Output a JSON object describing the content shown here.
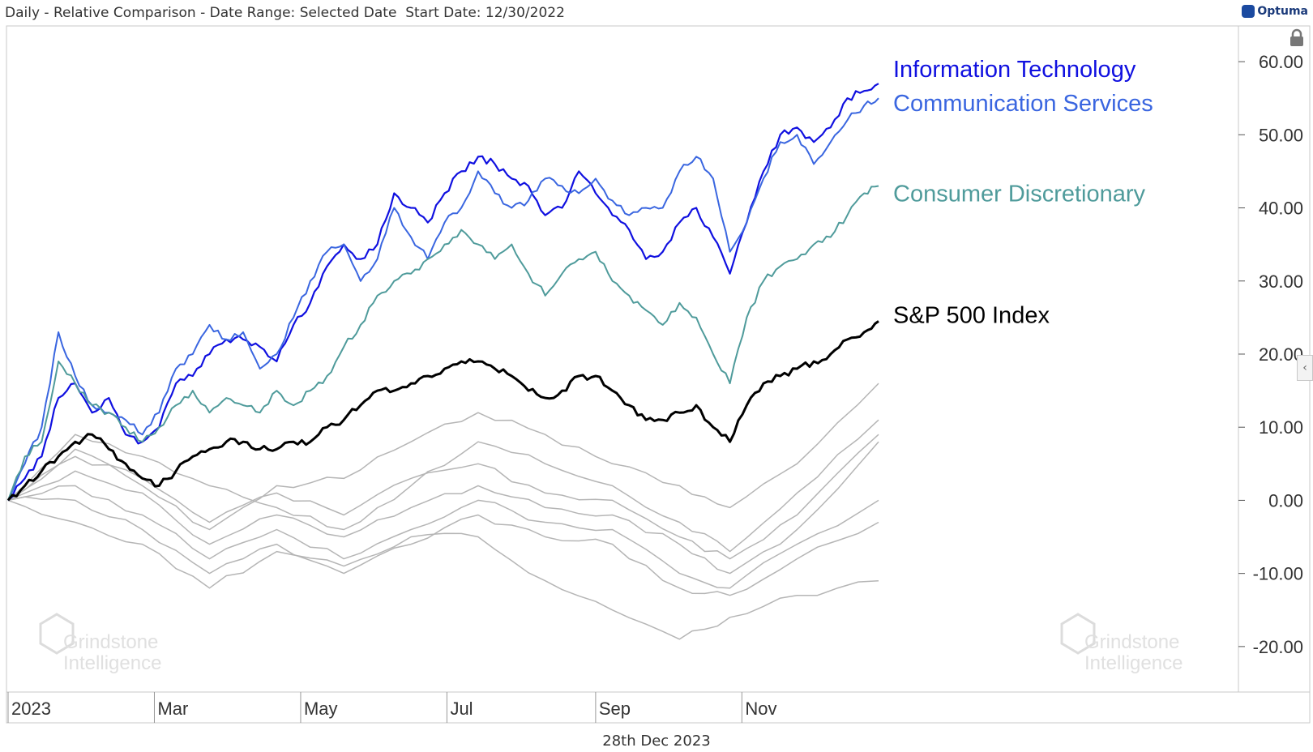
{
  "header": {
    "title": "Daily - Relative Comparison - Date Range: Selected Date  Start Date: 12/30/2022",
    "brand": "Optuma"
  },
  "footer": {
    "date": "28th Dec 2023"
  },
  "watermark": {
    "line1": "Grindstone",
    "line2": "Intelligence"
  },
  "icons": {
    "lock": "lock-icon",
    "collapse": "chevron-left-icon",
    "brand_mark": "optuma-logo-icon"
  },
  "chart_data": {
    "type": "line",
    "title": "",
    "xlabel": "",
    "ylabel": "",
    "x_tick_labels": [
      "2023",
      "Mar",
      "May",
      "Jul",
      "Sep",
      "Nov"
    ],
    "y_tick_labels": [
      "60.00",
      "50.00",
      "40.00",
      "30.00",
      "20.00",
      "10.00",
      "0.00",
      "-10.00",
      "-20.00"
    ],
    "ylim": [
      -26,
      64
    ],
    "x_range": [
      "2022-12-30",
      "2023-12-28"
    ],
    "grid": false,
    "legend": "inline labels at right end of series",
    "series": [
      {
        "name": "Information Technology",
        "color": "#1010e0",
        "width": 2.2,
        "x": [
          "2022-12-30",
          "2023-01-06",
          "2023-01-13",
          "2023-01-20",
          "2023-01-27",
          "2023-02-03",
          "2023-02-10",
          "2023-02-17",
          "2023-02-24",
          "2023-03-03",
          "2023-03-10",
          "2023-03-17",
          "2023-03-24",
          "2023-03-31",
          "2023-04-07",
          "2023-04-14",
          "2023-04-21",
          "2023-04-28",
          "2023-05-05",
          "2023-05-12",
          "2023-05-19",
          "2023-05-26",
          "2023-06-02",
          "2023-06-09",
          "2023-06-16",
          "2023-06-23",
          "2023-06-30",
          "2023-07-07",
          "2023-07-14",
          "2023-07-21",
          "2023-07-28",
          "2023-08-04",
          "2023-08-11",
          "2023-08-18",
          "2023-08-25",
          "2023-09-01",
          "2023-09-08",
          "2023-09-15",
          "2023-09-22",
          "2023-09-29",
          "2023-10-06",
          "2023-10-13",
          "2023-10-20",
          "2023-10-27",
          "2023-11-03",
          "2023-11-10",
          "2023-11-17",
          "2023-11-24",
          "2023-12-01",
          "2023-12-08",
          "2023-12-15",
          "2023-12-22",
          "2023-12-28"
        ],
        "y": [
          0,
          3,
          6,
          14,
          16,
          12,
          14,
          9,
          8,
          10,
          16,
          17,
          20,
          22,
          22,
          21,
          19,
          24,
          27,
          32,
          35,
          33,
          35,
          42,
          40,
          38,
          42,
          45,
          47,
          46,
          44,
          43,
          39,
          40,
          45,
          42,
          39,
          37,
          33,
          34,
          38,
          40,
          36,
          31,
          38,
          45,
          50,
          51,
          49,
          51,
          55,
          56,
          57
        ]
      },
      {
        "name": "Communication Services",
        "color": "#3a66e0",
        "width": 2.0,
        "x": [
          "2022-12-30",
          "2023-01-06",
          "2023-01-13",
          "2023-01-20",
          "2023-01-27",
          "2023-02-03",
          "2023-02-10",
          "2023-02-17",
          "2023-02-24",
          "2023-03-03",
          "2023-03-10",
          "2023-03-17",
          "2023-03-24",
          "2023-03-31",
          "2023-04-07",
          "2023-04-14",
          "2023-04-21",
          "2023-04-28",
          "2023-05-05",
          "2023-05-12",
          "2023-05-19",
          "2023-05-26",
          "2023-06-02",
          "2023-06-09",
          "2023-06-16",
          "2023-06-23",
          "2023-06-30",
          "2023-07-07",
          "2023-07-14",
          "2023-07-21",
          "2023-07-28",
          "2023-08-04",
          "2023-08-11",
          "2023-08-18",
          "2023-08-25",
          "2023-09-01",
          "2023-09-08",
          "2023-09-15",
          "2023-09-22",
          "2023-09-29",
          "2023-10-06",
          "2023-10-13",
          "2023-10-20",
          "2023-10-27",
          "2023-11-03",
          "2023-11-10",
          "2023-11-17",
          "2023-11-24",
          "2023-12-01",
          "2023-12-08",
          "2023-12-15",
          "2023-12-22",
          "2023-12-28"
        ],
        "y": [
          0,
          5,
          10,
          23,
          17,
          13,
          12,
          11,
          9,
          12,
          18,
          20,
          24,
          22,
          23,
          18,
          20,
          25,
          30,
          34,
          35,
          30,
          33,
          40,
          36,
          33,
          38,
          40,
          45,
          42,
          40,
          41,
          44,
          43,
          42,
          44,
          41,
          39,
          40,
          40,
          45,
          47,
          44,
          34,
          38,
          44,
          49,
          50,
          46,
          49,
          52,
          54,
          55
        ]
      },
      {
        "name": "Consumer Discretionary",
        "color": "#4f9b9b",
        "width": 2.0,
        "x": [
          "2022-12-30",
          "2023-01-06",
          "2023-01-13",
          "2023-01-20",
          "2023-01-27",
          "2023-02-03",
          "2023-02-10",
          "2023-02-17",
          "2023-02-24",
          "2023-03-03",
          "2023-03-10",
          "2023-03-17",
          "2023-03-24",
          "2023-03-31",
          "2023-04-07",
          "2023-04-14",
          "2023-04-21",
          "2023-04-28",
          "2023-05-05",
          "2023-05-12",
          "2023-05-19",
          "2023-05-26",
          "2023-06-02",
          "2023-06-09",
          "2023-06-16",
          "2023-06-23",
          "2023-06-30",
          "2023-07-07",
          "2023-07-14",
          "2023-07-21",
          "2023-07-28",
          "2023-08-04",
          "2023-08-11",
          "2023-08-18",
          "2023-08-25",
          "2023-09-01",
          "2023-09-08",
          "2023-09-15",
          "2023-09-22",
          "2023-09-29",
          "2023-10-06",
          "2023-10-13",
          "2023-10-20",
          "2023-10-27",
          "2023-11-03",
          "2023-11-10",
          "2023-11-17",
          "2023-11-24",
          "2023-12-01",
          "2023-12-08",
          "2023-12-15",
          "2023-12-22",
          "2023-12-28"
        ],
        "y": [
          0,
          6,
          8,
          19,
          16,
          13,
          12,
          10,
          8,
          10,
          13,
          15,
          12,
          14,
          13,
          12,
          15,
          13,
          15,
          17,
          21,
          24,
          28,
          30,
          31,
          33,
          35,
          37,
          35,
          33,
          35,
          31,
          28,
          31,
          33,
          34,
          30,
          28,
          26,
          24,
          27,
          25,
          20,
          16,
          25,
          30,
          32,
          33,
          35,
          36,
          39,
          42,
          43
        ]
      },
      {
        "name": "S&P 500 Index",
        "color": "#000000",
        "width": 3.0,
        "x": [
          "2022-12-30",
          "2023-01-06",
          "2023-01-13",
          "2023-01-20",
          "2023-01-27",
          "2023-02-03",
          "2023-02-10",
          "2023-02-17",
          "2023-02-24",
          "2023-03-03",
          "2023-03-10",
          "2023-03-17",
          "2023-03-24",
          "2023-03-31",
          "2023-04-07",
          "2023-04-14",
          "2023-04-21",
          "2023-04-28",
          "2023-05-05",
          "2023-05-12",
          "2023-05-19",
          "2023-05-26",
          "2023-06-02",
          "2023-06-09",
          "2023-06-16",
          "2023-06-23",
          "2023-06-30",
          "2023-07-07",
          "2023-07-14",
          "2023-07-21",
          "2023-07-28",
          "2023-08-04",
          "2023-08-11",
          "2023-08-18",
          "2023-08-25",
          "2023-09-01",
          "2023-09-08",
          "2023-09-15",
          "2023-09-22",
          "2023-09-29",
          "2023-10-06",
          "2023-10-13",
          "2023-10-20",
          "2023-10-27",
          "2023-11-03",
          "2023-11-10",
          "2023-11-17",
          "2023-11-24",
          "2023-12-01",
          "2023-12-08",
          "2023-12-15",
          "2023-12-22",
          "2023-12-28"
        ],
        "y": [
          0,
          2,
          4,
          6,
          8,
          9,
          7,
          5,
          3,
          2,
          4,
          6,
          7,
          8,
          8,
          7,
          7,
          8,
          8,
          10,
          11,
          13,
          15,
          15,
          16,
          17,
          18,
          19,
          19,
          18,
          17,
          15,
          14,
          15,
          17,
          17,
          15,
          13,
          11,
          11,
          12,
          13,
          10,
          8,
          13,
          16,
          17,
          18,
          19,
          20,
          22,
          23,
          24.5
        ]
      },
      {
        "name": "",
        "color": "#b5b5b5",
        "width": 1.5,
        "x": [
          "2022-12-30",
          "2023-01-27",
          "2023-02-24",
          "2023-03-24",
          "2023-04-21",
          "2023-05-19",
          "2023-06-16",
          "2023-07-14",
          "2023-08-11",
          "2023-09-08",
          "2023-10-06",
          "2023-10-27",
          "2023-11-24",
          "2023-12-28"
        ],
        "y": [
          0,
          7,
          2,
          -4,
          2,
          3,
          8,
          12,
          9,
          5,
          2,
          -1,
          5,
          16
        ]
      },
      {
        "name": "",
        "color": "#b5b5b5",
        "width": 1.5,
        "x": [
          "2022-12-30",
          "2023-01-27",
          "2023-02-24",
          "2023-03-24",
          "2023-04-21",
          "2023-05-19",
          "2023-06-16",
          "2023-07-14",
          "2023-08-11",
          "2023-09-08",
          "2023-10-06",
          "2023-10-27",
          "2023-11-24",
          "2023-12-28"
        ],
        "y": [
          0,
          9,
          6,
          2,
          -1,
          -4,
          2,
          8,
          5,
          2,
          -3,
          -7,
          1,
          11
        ]
      },
      {
        "name": "",
        "color": "#b5b5b5",
        "width": 1.5,
        "x": [
          "2022-12-30",
          "2023-01-27",
          "2023-02-24",
          "2023-03-24",
          "2023-04-21",
          "2023-05-19",
          "2023-06-16",
          "2023-07-14",
          "2023-08-11",
          "2023-09-08",
          "2023-10-06",
          "2023-10-27",
          "2023-11-24",
          "2023-12-28"
        ],
        "y": [
          0,
          6,
          3,
          -3,
          1,
          -2,
          3,
          5,
          1,
          0,
          -5,
          -8,
          -2,
          9
        ]
      },
      {
        "name": "",
        "color": "#b5b5b5",
        "width": 1.5,
        "x": [
          "2022-12-30",
          "2023-01-27",
          "2023-02-24",
          "2023-03-24",
          "2023-04-21",
          "2023-05-19",
          "2023-06-16",
          "2023-07-14",
          "2023-08-11",
          "2023-09-08",
          "2023-10-06",
          "2023-10-27",
          "2023-11-24",
          "2023-12-28"
        ],
        "y": [
          0,
          4,
          1,
          -6,
          -2,
          -5,
          -1,
          2,
          -1,
          -2,
          -6,
          -10,
          -4,
          8
        ]
      },
      {
        "name": "",
        "color": "#b5b5b5",
        "width": 1.5,
        "x": [
          "2022-12-30",
          "2023-01-27",
          "2023-02-24",
          "2023-03-24",
          "2023-04-21",
          "2023-05-19",
          "2023-06-16",
          "2023-07-14",
          "2023-08-11",
          "2023-09-08",
          "2023-10-06",
          "2023-10-27",
          "2023-11-24",
          "2023-12-28"
        ],
        "y": [
          0,
          2,
          -2,
          -8,
          -4,
          -8,
          -4,
          0,
          -3,
          -4,
          -10,
          -12,
          -6,
          0
        ]
      },
      {
        "name": "",
        "color": "#b5b5b5",
        "width": 1.5,
        "x": [
          "2022-12-30",
          "2023-01-27",
          "2023-02-24",
          "2023-03-24",
          "2023-04-21",
          "2023-05-19",
          "2023-06-16",
          "2023-07-14",
          "2023-08-11",
          "2023-09-08",
          "2023-10-06",
          "2023-10-27",
          "2023-11-24",
          "2023-12-28"
        ],
        "y": [
          0,
          0,
          -4,
          -10,
          -6,
          -10,
          -6,
          -2,
          -5,
          -6,
          -12,
          -13,
          -8,
          -3
        ]
      },
      {
        "name": "",
        "color": "#b5b5b5",
        "width": 1.5,
        "x": [
          "2022-12-30",
          "2023-01-27",
          "2023-02-24",
          "2023-03-24",
          "2023-04-21",
          "2023-05-19",
          "2023-06-16",
          "2023-07-14",
          "2023-08-11",
          "2023-09-08",
          "2023-10-06",
          "2023-10-27",
          "2023-11-24",
          "2023-12-28"
        ],
        "y": [
          0,
          -3,
          -6,
          -12,
          -7,
          -9,
          -5,
          -5,
          -11,
          -15,
          -19,
          -16,
          -13,
          -11
        ]
      }
    ]
  }
}
